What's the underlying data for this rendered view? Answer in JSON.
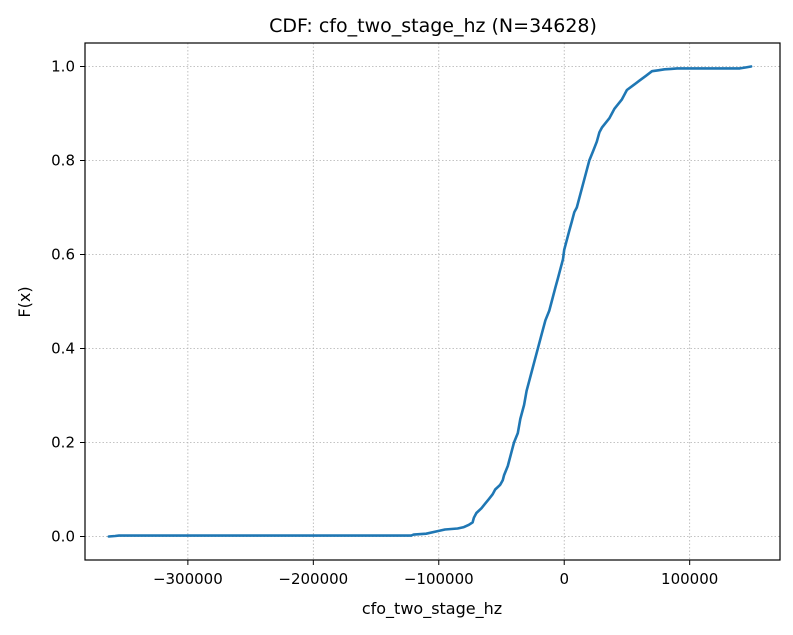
{
  "chart_data": {
    "type": "line",
    "title": "CDF: cfo_two_stage_hz  (N=34628)",
    "xlabel": "cfo_two_stage_hz",
    "ylabel": "F(x)",
    "xlim": [
      -382000,
      172000
    ],
    "ylim": [
      -0.05,
      1.05
    ],
    "xticks": [
      -300000,
      -200000,
      -100000,
      0,
      100000
    ],
    "xtick_labels": [
      "−300000",
      "−200000",
      "−100000",
      "0",
      "100000"
    ],
    "yticks": [
      0.0,
      0.2,
      0.4,
      0.6,
      0.8,
      1.0
    ],
    "ytick_labels": [
      "0.0",
      "0.2",
      "0.4",
      "0.6",
      "0.8",
      "1.0"
    ],
    "grid": true,
    "color": "#1f77b4",
    "series": [
      {
        "x": [
          -363000,
          -358000,
          -355000,
          -350000,
          -300000,
          -200000,
          -122000,
          -120000,
          -110000,
          -100000,
          -95000,
          -90000,
          -85000,
          -80000,
          -76000,
          -73000,
          -72000,
          -70000,
          -66000,
          -63000,
          -60000,
          -57000,
          -55000,
          -51000,
          -49000,
          -48000,
          -45000,
          -42000,
          -40000,
          -37000,
          -35000,
          -32000,
          -30000,
          -28000,
          -26000,
          -24000,
          -22000,
          -20000,
          -18000,
          -15000,
          -12000,
          -10000,
          -7000,
          -5000,
          -3000,
          -1000,
          0,
          2000,
          4000,
          6000,
          8000,
          10000,
          12000,
          14000,
          16000,
          18000,
          20000,
          23000,
          26000,
          28000,
          30000,
          33000,
          36000,
          38000,
          40000,
          43000,
          46000,
          48000,
          50000,
          55000,
          60000,
          65000,
          70000,
          75000,
          80000,
          85000,
          90000,
          100000,
          120000,
          140000,
          145000,
          149000
        ],
        "y": [
          0.0,
          0.001,
          0.002,
          0.002,
          0.002,
          0.002,
          0.002,
          0.004,
          0.006,
          0.012,
          0.015,
          0.016,
          0.017,
          0.02,
          0.025,
          0.03,
          0.04,
          0.05,
          0.06,
          0.07,
          0.08,
          0.09,
          0.1,
          0.11,
          0.12,
          0.13,
          0.15,
          0.18,
          0.2,
          0.22,
          0.25,
          0.28,
          0.31,
          0.33,
          0.35,
          0.37,
          0.39,
          0.41,
          0.43,
          0.46,
          0.48,
          0.5,
          0.53,
          0.55,
          0.57,
          0.59,
          0.61,
          0.63,
          0.65,
          0.67,
          0.69,
          0.7,
          0.72,
          0.74,
          0.76,
          0.78,
          0.8,
          0.82,
          0.84,
          0.86,
          0.87,
          0.88,
          0.89,
          0.9,
          0.91,
          0.92,
          0.93,
          0.94,
          0.95,
          0.96,
          0.97,
          0.98,
          0.99,
          0.992,
          0.994,
          0.995,
          0.996,
          0.996,
          0.996,
          0.996,
          0.998,
          1.0
        ]
      }
    ]
  }
}
